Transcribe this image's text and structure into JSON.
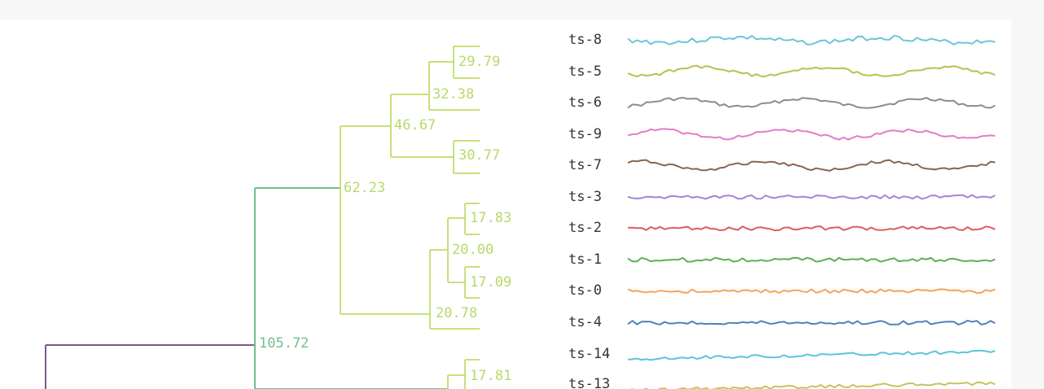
{
  "chart_data": {
    "type": "dendrogram",
    "colors": {
      "root": "#7b5a8e",
      "teal": "#72c08e",
      "lime": "#c6e07a",
      "lime_text": "#b7d96b"
    },
    "nodes": [
      {
        "id": "n105",
        "label": "105.72",
        "height": 105.72,
        "color": "#7b5a8e"
      },
      {
        "id": "n62",
        "label": "62.23",
        "height": 62.23,
        "color": "#72c08e"
      },
      {
        "id": "n46",
        "label": "46.67",
        "height": 46.67,
        "color": "#c6e07a"
      },
      {
        "id": "n32",
        "label": "32.38",
        "height": 32.38,
        "color": "#c6e07a"
      },
      {
        "id": "n29",
        "label": "29.79",
        "height": 29.79,
        "color": "#c6e07a"
      },
      {
        "id": "n30",
        "label": "30.77",
        "height": 30.77,
        "color": "#c6e07a"
      },
      {
        "id": "n20b",
        "label": "20.78",
        "height": 20.78,
        "color": "#c6e07a"
      },
      {
        "id": "n20a",
        "label": "20.00",
        "height": 20.0,
        "color": "#c6e07a"
      },
      {
        "id": "n17a",
        "label": "17.83",
        "height": 17.83,
        "color": "#c6e07a"
      },
      {
        "id": "n17b",
        "label": "17.09",
        "height": 17.09,
        "color": "#c6e07a"
      },
      {
        "id": "n17c",
        "label": "17.81",
        "height": 17.81,
        "color": "#c6e07a"
      }
    ],
    "leaves": [
      {
        "label": "ts-8",
        "color": "#6cc5d9",
        "style": "noisy"
      },
      {
        "label": "ts-5",
        "color": "#bdbf4f",
        "style": "wave"
      },
      {
        "label": "ts-6",
        "color": "#8c8c8c",
        "style": "wave"
      },
      {
        "label": "ts-9",
        "color": "#e37cc9",
        "style": "wave"
      },
      {
        "label": "ts-7",
        "color": "#8b6554",
        "style": "wave"
      },
      {
        "label": "ts-3",
        "color": "#a585d4",
        "style": "flat"
      },
      {
        "label": "ts-2",
        "color": "#d95f5a",
        "style": "flat"
      },
      {
        "label": "ts-1",
        "color": "#5fad58",
        "style": "flat"
      },
      {
        "label": "ts-0",
        "color": "#f5a25d",
        "style": "flat"
      },
      {
        "label": "ts-4",
        "color": "#4f81bd",
        "style": "flat"
      },
      {
        "label": "ts-14",
        "color": "#5bc4dc",
        "style": "trend"
      },
      {
        "label": "ts-13",
        "color": "#c5c35d",
        "style": "trend"
      }
    ]
  }
}
